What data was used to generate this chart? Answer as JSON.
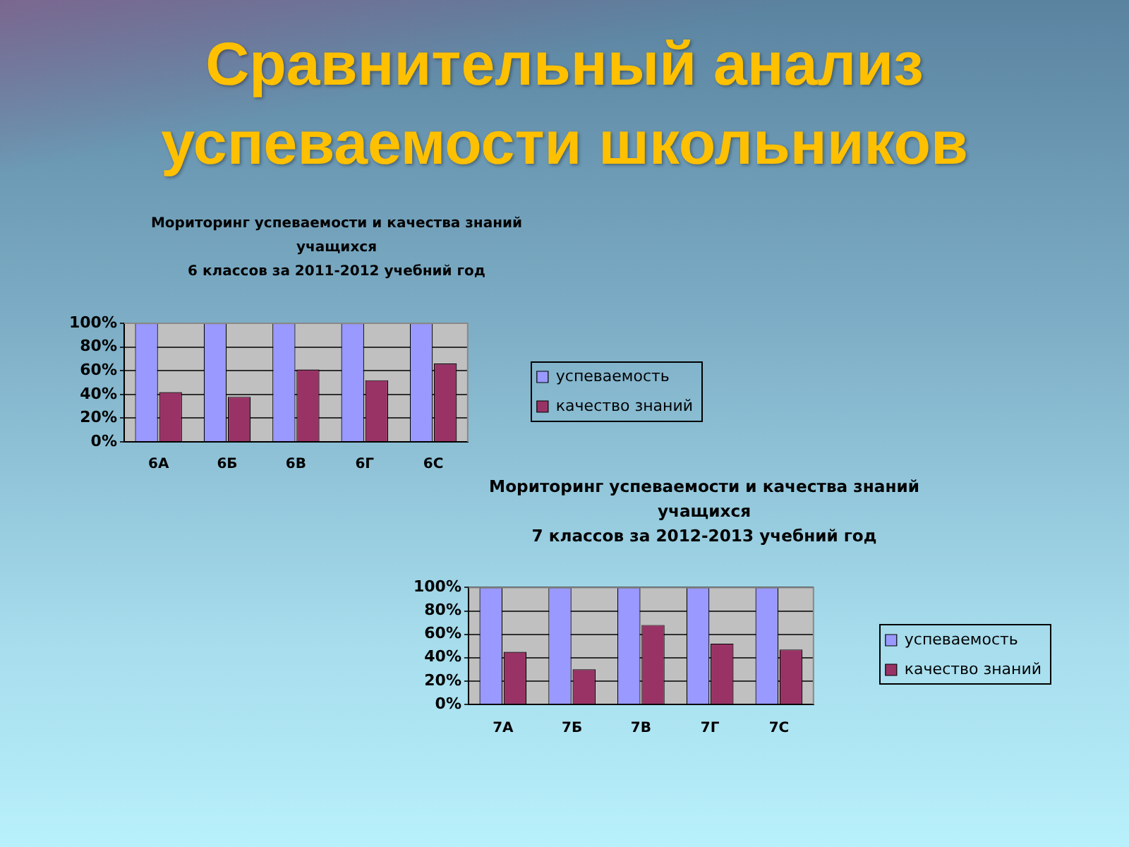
{
  "chart_data": [
    {
      "type": "other",
      "title": "Сравнительный анализ успеваемости школьников"
    },
    {
      "type": "bar",
      "title": "Мориторинг успеваемости и качества знаний\nучащихся\n6 классов за 2011-2012 учебний год",
      "categories": [
        "6А",
        "6Б",
        "6В",
        "6Г",
        "6С"
      ],
      "series": [
        {
          "name": "успеваемость",
          "color": "#9999ff",
          "values": [
            100,
            100,
            100,
            100,
            100
          ]
        },
        {
          "name": "качество знаний",
          "color": "#993366",
          "values": [
            42,
            38,
            61,
            52,
            66
          ]
        }
      ],
      "ylim": [
        0,
        100
      ],
      "yticks": [
        {
          "value": 0,
          "label": "0%"
        },
        {
          "value": 20,
          "label": "20%"
        },
        {
          "value": 40,
          "label": "40%"
        },
        {
          "value": 60,
          "label": "60%"
        },
        {
          "value": 80,
          "label": "80%"
        },
        {
          "value": 100,
          "label": "100%"
        }
      ],
      "grid": "y",
      "legend": "right"
    },
    {
      "type": "bar",
      "title": "Мориторинг успеваемости и качества знаний\nучащихся\n7 классов за 2012-2013 учебний год",
      "categories": [
        "7А",
        "7Б",
        "7В",
        "7Г",
        "7С"
      ],
      "series": [
        {
          "name": "успеваемость",
          "color": "#9999ff",
          "values": [
            100,
            100,
            100,
            100,
            100
          ]
        },
        {
          "name": "качество знаний",
          "color": "#993366",
          "values": [
            45,
            30,
            68,
            52,
            47
          ]
        }
      ],
      "ylim": [
        0,
        100
      ],
      "yticks": [
        {
          "value": 0,
          "label": "0%"
        },
        {
          "value": 20,
          "label": "20%"
        },
        {
          "value": 40,
          "label": "40%"
        },
        {
          "value": 60,
          "label": "60%"
        },
        {
          "value": 80,
          "label": "80%"
        },
        {
          "value": 100,
          "label": "100%"
        }
      ],
      "grid": "y",
      "legend": "right"
    }
  ]
}
